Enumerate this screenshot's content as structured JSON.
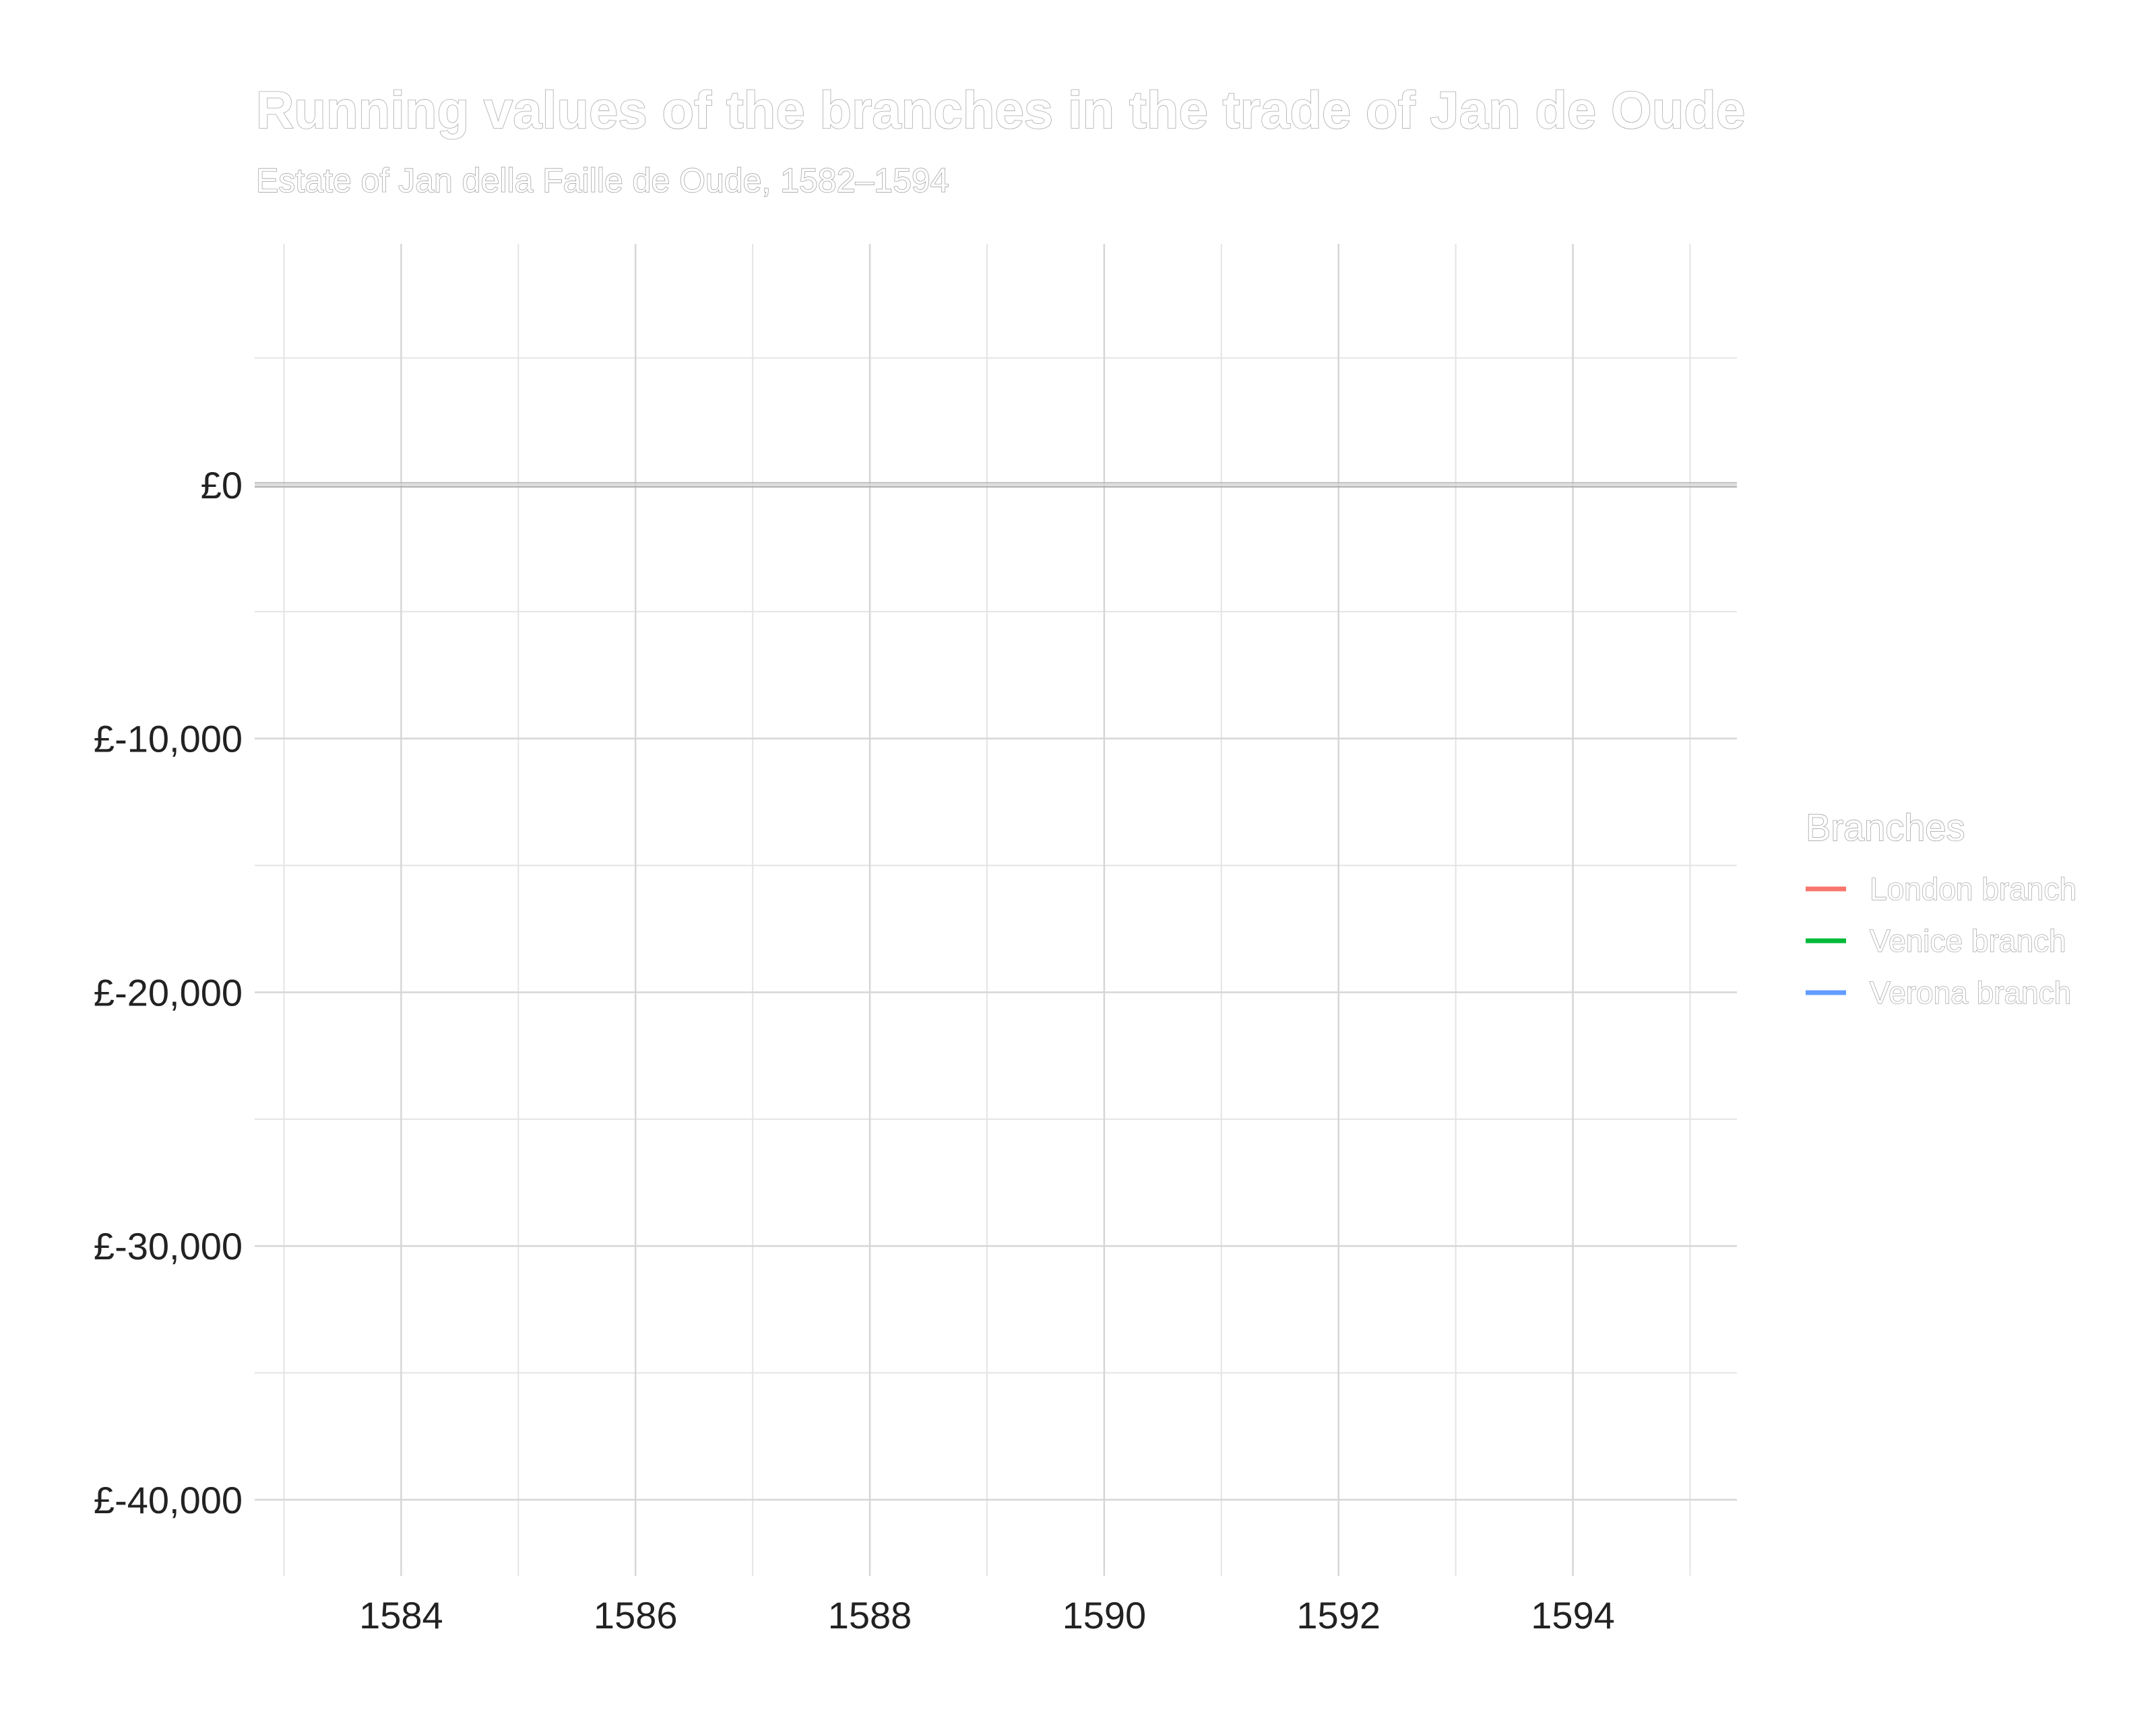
{
  "chart_data": {
    "type": "line",
    "title": "Running values of the branches in the trade of Jan de Oude",
    "subtitle": "Estate of Jan della Faille de Oude, 1582–1594",
    "xlabel": "",
    "ylabel": "",
    "xlim": [
      1582.75,
      1595.4
    ],
    "ylim": [
      -43000,
      9500
    ],
    "x_ticks": [
      1584,
      1586,
      1588,
      1590,
      1592,
      1594
    ],
    "x_tick_labels": [
      "1584",
      "1586",
      "1588",
      "1590",
      "1592",
      "1594"
    ],
    "y_ticks": [
      0,
      -10000,
      -20000,
      -30000,
      -40000
    ],
    "y_tick_labels": [
      "£0",
      "£-10,000",
      "£-20,000",
      "£-30,000",
      "£-40,000"
    ],
    "reference_line": 0,
    "grid": true,
    "legend": {
      "title": "Branches",
      "position": "right"
    },
    "series": [
      {
        "name": "London branch",
        "color": "#F8766D",
        "x": [],
        "y": []
      },
      {
        "name": "Venice branch",
        "color": "#00BA38",
        "x": [],
        "y": []
      },
      {
        "name": "Verona branch",
        "color": "#619CFF",
        "x": [],
        "y": []
      }
    ]
  }
}
